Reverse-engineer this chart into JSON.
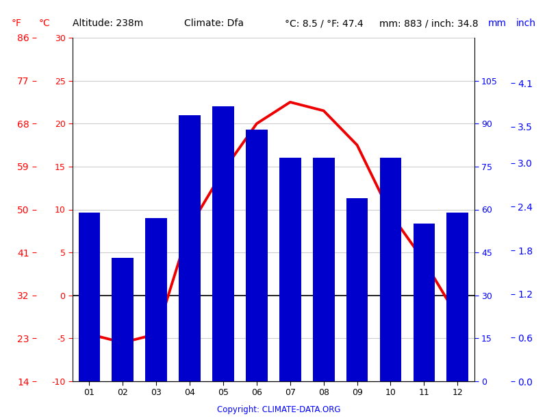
{
  "months": [
    "01",
    "02",
    "03",
    "04",
    "05",
    "06",
    "07",
    "08",
    "09",
    "10",
    "11",
    "12"
  ],
  "precipitation_mm": [
    59,
    43,
    57,
    93,
    96,
    88,
    78,
    78,
    64,
    78,
    55,
    59
  ],
  "temperature_c": [
    -4.5,
    -5.5,
    -4.5,
    8.0,
    14.5,
    20.0,
    22.5,
    21.5,
    17.5,
    9.5,
    4.0,
    -2.5
  ],
  "bar_color": "#0000cc",
  "line_color": "#ee0000",
  "yticks_c": [
    30,
    25,
    20,
    15,
    10,
    5,
    0,
    -5,
    -10
  ],
  "yticks_f": [
    86,
    77,
    68,
    59,
    50,
    41,
    32,
    23,
    14
  ],
  "yticks_mm": [
    105,
    90,
    75,
    60,
    45,
    30,
    15,
    0
  ],
  "yticks_inch": [
    "4.1",
    "3.5",
    "3.0",
    "2.4",
    "1.8",
    "1.2",
    "0.6",
    "0.0"
  ],
  "yticks_inch_vals": [
    4.1,
    3.5,
    3.0,
    2.4,
    1.8,
    1.2,
    0.6,
    0.0
  ],
  "temp_ylim_c": [
    -10,
    30
  ],
  "precip_ylim_mm": [
    0,
    120
  ],
  "copyright_text": "Copyright: CLIMATE-DATA.ORG",
  "background_color": "#ffffff",
  "grid_color": "#cccccc",
  "line_width": 2.8,
  "bar_width": 0.65
}
